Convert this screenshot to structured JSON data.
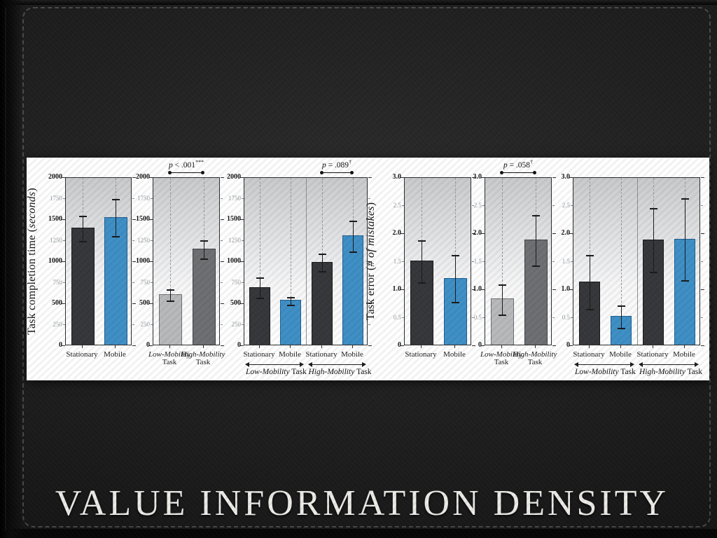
{
  "slide": {
    "title": "VALUE INFORMATION DENSITY"
  },
  "colors": {
    "dark": {
      "fill": "#35373a",
      "border": "#17181b"
    },
    "blue": {
      "fill": "#3e8fc6",
      "border": "#1f5e8f"
    },
    "light": {
      "fill": "#b7b9bb",
      "border": "#6e7072"
    },
    "mid": {
      "fill": "#6d6f72",
      "border": "#3e4043"
    }
  },
  "chart_data": [
    {
      "id": "completion-time-by-posture",
      "type": "bar",
      "ylabel": {
        "main": "Task completion time",
        "unit": "seconds"
      },
      "ylim": [
        0,
        2000
      ],
      "yticks": [
        {
          "label": "0",
          "v": 0,
          "major": true
        },
        {
          "label": "250",
          "v": 250,
          "major": false
        },
        {
          "label": "500",
          "v": 500,
          "major": true
        },
        {
          "label": "750",
          "v": 750,
          "major": false
        },
        {
          "label": "1000",
          "v": 1000,
          "major": true
        },
        {
          "label": "1250",
          "v": 1250,
          "major": false
        },
        {
          "label": "1500",
          "v": 1500,
          "major": true
        },
        {
          "label": "1750",
          "v": 1750,
          "major": false
        },
        {
          "label": "2000",
          "v": 2000,
          "major": true
        }
      ],
      "bars": [
        {
          "name": "stationary",
          "label": "Stationary",
          "value": 1390,
          "err": 150,
          "color": "dark"
        },
        {
          "name": "mobile",
          "label": "Mobile",
          "value": 1520,
          "err": 220,
          "color": "blue"
        }
      ]
    },
    {
      "id": "completion-time-by-task",
      "type": "bar",
      "ylim": [
        0,
        2000
      ],
      "yticks": [
        {
          "label": "0",
          "v": 0,
          "major": true
        },
        {
          "label": "250",
          "v": 250,
          "major": false
        },
        {
          "label": "500",
          "v": 500,
          "major": true
        },
        {
          "label": "750",
          "v": 750,
          "major": false
        },
        {
          "label": "1000",
          "v": 1000,
          "major": true
        },
        {
          "label": "1250",
          "v": 1250,
          "major": false
        },
        {
          "label": "1500",
          "v": 1500,
          "major": true
        },
        {
          "label": "1750",
          "v": 1750,
          "major": false
        },
        {
          "label": "2000",
          "v": 2000,
          "major": true
        }
      ],
      "bars": [
        {
          "name": "low-mobility-task",
          "label_italic": "Low-Mobility",
          "label": "Task",
          "two_line": true,
          "value": 600,
          "err": 65,
          "color": "light"
        },
        {
          "name": "high-mobility-task",
          "label_italic": "High-Mobility",
          "label": "Task",
          "two_line": true,
          "value": 1140,
          "err": 110,
          "color": "mid"
        }
      ],
      "annotation": {
        "italic": "p",
        "text": " < .001",
        "sup": "***",
        "bars": [
          0,
          1
        ]
      }
    },
    {
      "id": "completion-time-interaction",
      "type": "bar",
      "ylim": [
        0,
        2000
      ],
      "divider": true,
      "yticks": [
        {
          "label": "0",
          "v": 0,
          "major": true
        },
        {
          "label": "250",
          "v": 250,
          "major": false
        },
        {
          "label": "500",
          "v": 500,
          "major": true
        },
        {
          "label": "750",
          "v": 750,
          "major": false
        },
        {
          "label": "1000",
          "v": 1000,
          "major": true
        },
        {
          "label": "1250",
          "v": 1250,
          "major": false
        },
        {
          "label": "1500",
          "v": 1500,
          "major": true
        },
        {
          "label": "1750",
          "v": 1750,
          "major": false
        },
        {
          "label": "2000",
          "v": 2000,
          "major": true
        }
      ],
      "bars": [
        {
          "name": "low-task-stationary",
          "label": "Stationary",
          "value": 685,
          "err": 122,
          "color": "dark"
        },
        {
          "name": "low-task-mobile",
          "label": "Mobile",
          "value": 530,
          "err": 45,
          "color": "blue"
        },
        {
          "name": "high-task-stationary",
          "label": "Stationary",
          "value": 985,
          "err": 105,
          "color": "dark"
        },
        {
          "name": "high-task-mobile",
          "label": "Mobile",
          "value": 1300,
          "err": 180,
          "color": "blue"
        }
      ],
      "annotation": {
        "italic": "p",
        "text": " = .089",
        "sup": "†",
        "bars": [
          2,
          3
        ]
      },
      "groups": [
        {
          "label_italic": "Low-Mobility",
          "label": "Task",
          "bars": [
            0,
            1
          ]
        },
        {
          "label_italic": "High-Mobility",
          "label": "Task",
          "bars": [
            2,
            3
          ]
        }
      ]
    },
    {
      "id": "error-by-posture",
      "type": "bar",
      "ylabel": {
        "main": "Task error",
        "unit": "# of mistakes"
      },
      "ylim": [
        0,
        3
      ],
      "yticks": [
        {
          "label": "0",
          "v": 0,
          "major": true
        },
        {
          "label": "0.5",
          "v": 0.5,
          "major": false
        },
        {
          "label": "1.0",
          "v": 1,
          "major": true
        },
        {
          "label": "1.5",
          "v": 1.5,
          "major": false
        },
        {
          "label": "2.0",
          "v": 2,
          "major": true
        },
        {
          "label": "2.5",
          "v": 2.5,
          "major": false
        },
        {
          "label": "3.0",
          "v": 3,
          "major": true
        }
      ],
      "bars": [
        {
          "name": "stationary",
          "label": "Stationary",
          "value": 1.5,
          "err": 0.37,
          "color": "dark"
        },
        {
          "name": "mobile",
          "label": "Mobile",
          "value": 1.19,
          "err": 0.42,
          "color": "blue"
        }
      ]
    },
    {
      "id": "error-by-task",
      "type": "bar",
      "ylim": [
        0,
        3
      ],
      "yticks": [
        {
          "label": "0",
          "v": 0,
          "major": true
        },
        {
          "label": "0.5",
          "v": 0.5,
          "major": false
        },
        {
          "label": "1.0",
          "v": 1,
          "major": true
        },
        {
          "label": "1.5",
          "v": 1.5,
          "major": false
        },
        {
          "label": "2.0",
          "v": 2,
          "major": true
        },
        {
          "label": "2.5",
          "v": 2.5,
          "major": false
        },
        {
          "label": "3.0",
          "v": 3,
          "major": true
        }
      ],
      "bars": [
        {
          "name": "low-mobility-task",
          "label_italic": "Low-Mobility",
          "label": "Task",
          "two_line": true,
          "value": 0.82,
          "err": 0.27,
          "color": "light"
        },
        {
          "name": "high-mobility-task",
          "label_italic": "High-Mobility",
          "label": "Task",
          "two_line": true,
          "value": 1.88,
          "err": 0.45,
          "color": "mid"
        }
      ],
      "annotation": {
        "italic": "p",
        "text": " = .058",
        "sup": "†",
        "bars": [
          0,
          1
        ]
      }
    },
    {
      "id": "error-interaction",
      "type": "bar",
      "ylim": [
        0,
        3
      ],
      "divider": true,
      "yticks": [
        {
          "label": "0",
          "v": 0,
          "major": true
        },
        {
          "label": "0.5",
          "v": 0.5,
          "major": false
        },
        {
          "label": "1.0",
          "v": 1,
          "major": true
        },
        {
          "label": "1.5",
          "v": 1.5,
          "major": false
        },
        {
          "label": "2.0",
          "v": 2,
          "major": true
        },
        {
          "label": "2.5",
          "v": 2.5,
          "major": false
        },
        {
          "label": "3.0",
          "v": 3,
          "major": true
        }
      ],
      "bars": [
        {
          "name": "low-task-stationary",
          "label": "Stationary",
          "value": 1.13,
          "err": 0.48,
          "color": "dark"
        },
        {
          "name": "low-task-mobile",
          "label": "Mobile",
          "value": 0.51,
          "err": 0.2,
          "color": "blue"
        },
        {
          "name": "high-task-stationary",
          "label": "Stationary",
          "value": 1.88,
          "err": 0.57,
          "color": "dark"
        },
        {
          "name": "high-task-mobile",
          "label": "Mobile",
          "value": 1.89,
          "err": 0.73,
          "color": "blue"
        }
      ],
      "groups": [
        {
          "label_italic": "Low-Mobility",
          "label": "Task",
          "bars": [
            0,
            1
          ]
        },
        {
          "label_italic": "High-Mobility",
          "label": "Task",
          "bars": [
            2,
            3
          ]
        }
      ]
    }
  ]
}
